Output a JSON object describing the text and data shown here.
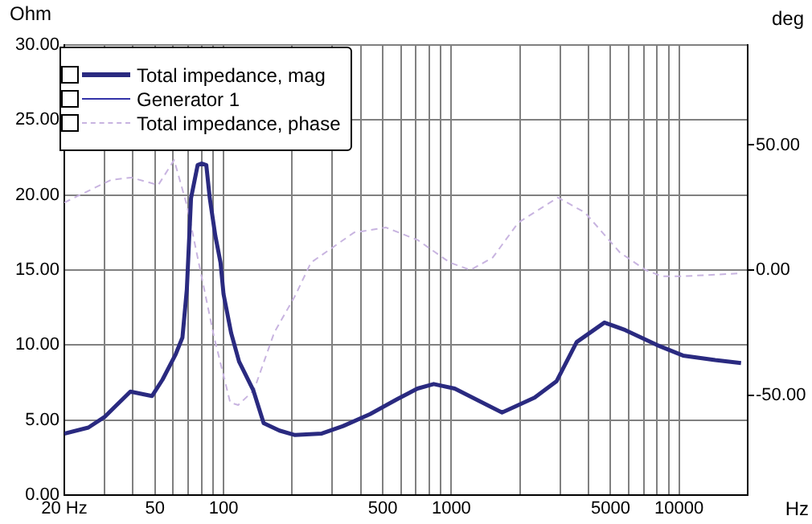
{
  "chart_data": {
    "type": "line",
    "xlabel": "Hz",
    "ylabel": "Ohm",
    "y2label": "deg",
    "log": "x",
    "xlim": [
      20,
      20000
    ],
    "xticks": [
      {
        "value": 20,
        "label": "20 Hz"
      },
      {
        "value": 30,
        "label": null
      },
      {
        "value": 40,
        "label": null
      },
      50,
      {
        "value": 60,
        "label": null
      },
      {
        "value": 70,
        "label": null
      },
      {
        "value": 80,
        "label": null
      },
      {
        "value": 90,
        "label": null
      },
      100,
      {
        "value": 200,
        "label": null
      },
      {
        "value": 300,
        "label": null
      },
      {
        "value": 400,
        "label": null
      },
      500,
      {
        "value": 600,
        "label": null
      },
      {
        "value": 700,
        "label": null
      },
      {
        "value": 800,
        "label": null
      },
      {
        "value": 900,
        "label": null
      },
      1000,
      {
        "value": 2000,
        "label": null
      },
      {
        "value": 3000,
        "label": null
      },
      {
        "value": 4000,
        "label": null
      },
      5000,
      {
        "value": 6000,
        "label": null
      },
      {
        "value": 7000,
        "label": null
      },
      {
        "value": 8000,
        "label": null
      },
      {
        "value": 9000,
        "label": null
      },
      10000
    ],
    "ylim": [
      0,
      30
    ],
    "yticks": [
      {
        "value": 0,
        "label": "0.00"
      },
      {
        "value": 5,
        "label": "5.00"
      },
      {
        "value": 10,
        "label": "10.00"
      },
      {
        "value": 15,
        "label": "15.00"
      },
      {
        "value": 20,
        "label": "20.00"
      },
      {
        "value": 25,
        "label": "25.00"
      },
      {
        "value": 30,
        "label": "30.00"
      }
    ],
    "y2lim": [
      -90,
      90
    ],
    "y2ticks": [
      {
        "value": -50,
        "label": "-50.00"
      },
      {
        "value": 0,
        "label": "0.00"
      },
      {
        "value": 50,
        "label": "50.00"
      }
    ],
    "grid": true,
    "legend": "top left",
    "marker": "none",
    "series": [
      {
        "name": "Total impedance, mag",
        "color": "#2a2a80",
        "line_style": "solid",
        "x": [
          20,
          25.5,
          30,
          39,
          48.5,
          54,
          61.7,
          66,
          69,
          72,
          77,
          80,
          84,
          87,
          92,
          97,
          100,
          108,
          117,
          135,
          150,
          176,
          206,
          270,
          335,
          440,
          580,
          710,
          837,
          1035,
          1670,
          2320,
          2900,
          3550,
          4700,
          5800,
          8000,
          10400,
          14400,
          18700
        ],
        "values": [
          4.1,
          4.5,
          5.2,
          6.9,
          6.6,
          7.7,
          9.4,
          10.5,
          13.7,
          19.8,
          22.0,
          22.1,
          22.0,
          19.8,
          17.3,
          15.5,
          13.4,
          10.8,
          8.9,
          7.0,
          4.8,
          4.3,
          4.0,
          4.1,
          4.6,
          5.4,
          6.4,
          7.1,
          7.4,
          7.1,
          5.5,
          6.5,
          7.6,
          10.2,
          11.5,
          11.0,
          10.0,
          9.3,
          9.0,
          8.8
        ]
      },
      {
        "name": "Generator 1",
        "color": "#3333a8",
        "line_style": "solid"
      },
      {
        "name": "Total impedance, phase",
        "color": "#c8b4e0",
        "line_style": "dashed",
        "axis": "y2",
        "x": [
          20,
          32,
          39.3,
          51.7,
          60.7,
          69,
          78.6,
          91,
          107,
          116,
          136,
          167,
          207,
          242,
          374,
          517,
          712,
          985,
          1213,
          1520,
          1970,
          2940,
          3860,
          5500,
          7140,
          8400,
          10400,
          18700
        ],
        "values": [
          27,
          36,
          37,
          34,
          44,
          26,
          1,
          -27,
          -53,
          -54,
          -48,
          -25,
          -10,
          3,
          15,
          17,
          12,
          3,
          0,
          5,
          19,
          29,
          23,
          7,
          0,
          -2.5,
          -2.5,
          -1.3
        ]
      }
    ]
  }
}
